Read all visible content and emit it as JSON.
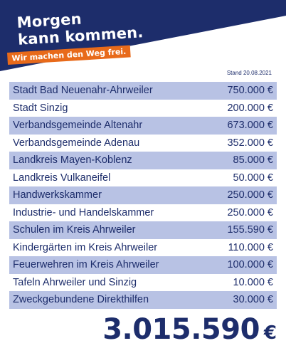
{
  "header": {
    "slogan_line1": "Morgen",
    "slogan_line2": "kann kommen.",
    "tagline": "Wir machen den Weg frei.",
    "colors": {
      "navy": "#1d2d6b",
      "orange": "#e86a1a",
      "row_shade": "#b8c2e4"
    }
  },
  "stand": "Stand 20.08.2021",
  "rows": [
    {
      "name": "Stadt Bad Neuenahr-Ahrweiler",
      "amount": "750.000 €"
    },
    {
      "name": "Stadt Sinzig",
      "amount": "200.000 €"
    },
    {
      "name": "Verbandsgemeinde Altenahr",
      "amount": "673.000 €"
    },
    {
      "name": "Verbandsgemeinde Adenau",
      "amount": "352.000 €"
    },
    {
      "name": "Landkreis Mayen-Koblenz",
      "amount": "85.000 €"
    },
    {
      "name": "Landkreis Vulkaneifel",
      "amount": "50.000 €"
    },
    {
      "name": "Handwerkskammer",
      "amount": "250.000 €"
    },
    {
      "name": "Industrie- und Handelskammer",
      "amount": "250.000 €"
    },
    {
      "name": "Schulen im Kreis Ahrweiler",
      "amount": "155.590 €"
    },
    {
      "name": "Kindergärten im Kreis Ahrweiler",
      "amount": "110.000 €"
    },
    {
      "name": "Feuerwehren im Kreis Ahrweiler",
      "amount": "100.000 €"
    },
    {
      "name": "Tafeln Ahrweiler und Sinzig",
      "amount": "10.000 €"
    },
    {
      "name": "Zweckgebundene Direkthilfen",
      "amount": "30.000 €"
    }
  ],
  "total": {
    "value": "3.015.590",
    "currency": "€"
  }
}
